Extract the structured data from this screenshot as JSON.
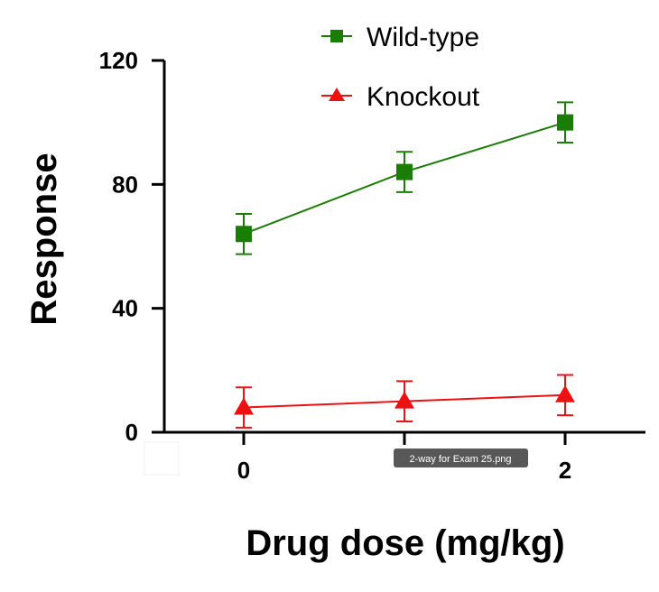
{
  "chart_data": {
    "type": "line",
    "title": "",
    "xlabel": "Drug dose (mg/kg)",
    "ylabel": "Response",
    "x": [
      0,
      1,
      2
    ],
    "x_tick_labels": [
      "0",
      "",
      "2"
    ],
    "ylim": [
      0,
      120
    ],
    "yticks": [
      0,
      40,
      80,
      120
    ],
    "y_tick_labels": [
      "0",
      "40",
      "80",
      "120"
    ],
    "legend_position": "top",
    "series": [
      {
        "name": "Wild-type",
        "marker": "square",
        "color": "#1a7d06",
        "values": [
          64,
          84,
          100
        ],
        "errors": [
          6.5,
          6.5,
          6.5
        ]
      },
      {
        "name": "Knockout",
        "marker": "triangle",
        "color": "#ee1111",
        "values": [
          8,
          10,
          12
        ],
        "errors": [
          6.5,
          6.5,
          6.5
        ]
      }
    ]
  },
  "overlay": {
    "file_tooltip": "2-way for Exam 25.png"
  }
}
